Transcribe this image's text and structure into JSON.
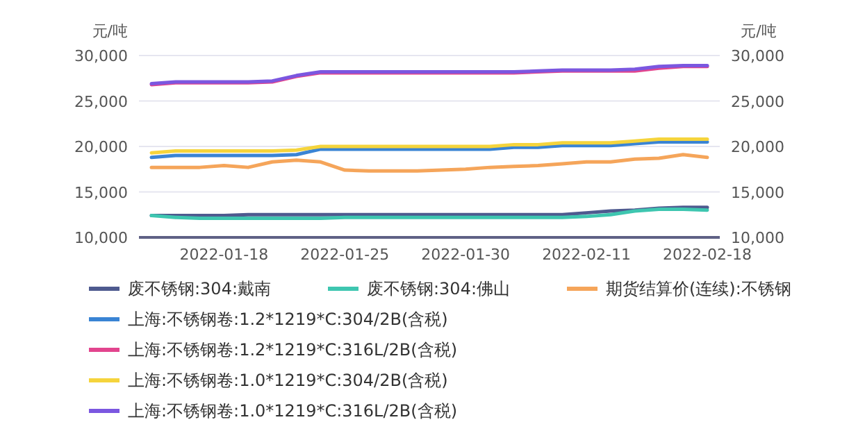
{
  "chart_data": {
    "type": "line",
    "ylabel": "元/吨",
    "y2label": "元/吨",
    "categories": [
      null,
      null,
      null,
      "2022-01-18",
      null,
      null,
      null,
      null,
      "2022-01-25",
      null,
      null,
      null,
      null,
      "2022-01-30",
      null,
      null,
      null,
      null,
      "2022-02-11",
      null,
      null,
      null,
      null,
      "2022-02-18"
    ],
    "ylim": [
      10000,
      30000
    ],
    "yticks": [
      {
        "value": 10000,
        "label": "10,000"
      },
      {
        "value": 15000,
        "label": "15,000"
      },
      {
        "value": 20000,
        "label": "20,000"
      },
      {
        "value": 25000,
        "label": "25,000"
      },
      {
        "value": 30000,
        "label": "30,000"
      }
    ],
    "y2lim": [
      10000,
      30000
    ],
    "y2ticks": [
      {
        "value": 10000,
        "label": "10,000"
      },
      {
        "value": 15000,
        "label": "15,000"
      },
      {
        "value": 20000,
        "label": "20,000"
      },
      {
        "value": 25000,
        "label": "25,000"
      },
      {
        "value": 30000,
        "label": "30,000"
      }
    ],
    "grid": "y",
    "legend": "bottom",
    "series": [
      {
        "name": "废不锈钢:304:戴南",
        "color": "#4e5a8f",
        "values": [
          12400,
          12400,
          12400,
          12400,
          12500,
          12500,
          12500,
          12500,
          12500,
          12500,
          12500,
          12500,
          12500,
          12500,
          12500,
          12500,
          12500,
          12500,
          12700,
          12900,
          13000,
          13200,
          13300,
          13300
        ]
      },
      {
        "name": "废不锈钢:304:佛山",
        "color": "#3ec6b0",
        "values": [
          12400,
          12200,
          12100,
          12100,
          12100,
          12100,
          12100,
          12100,
          12200,
          12200,
          12200,
          12200,
          12200,
          12200,
          12200,
          12200,
          12200,
          12200,
          12300,
          12500,
          12900,
          13100,
          13100,
          13000
        ]
      },
      {
        "name": "期货结算价(连续):不锈钢",
        "color": "#f5a55a",
        "values": [
          17700,
          17700,
          17700,
          17900,
          17700,
          18300,
          18500,
          18300,
          17400,
          17300,
          17300,
          17300,
          17400,
          17500,
          17700,
          17800,
          17900,
          18100,
          18300,
          18300,
          18600,
          18700,
          19100,
          18800
        ]
      },
      {
        "name": "上海:不锈钢卷:1.2*1219*C:304/2B(含税)",
        "color": "#3a84d4",
        "values": [
          18800,
          19000,
          19000,
          19000,
          19000,
          19000,
          19100,
          19700,
          19700,
          19700,
          19700,
          19700,
          19700,
          19700,
          19700,
          19900,
          19900,
          20100,
          20100,
          20100,
          20300,
          20500,
          20500,
          20500
        ]
      },
      {
        "name": "上海:不锈钢卷:1.2*1219*C:316L/2B(含税)",
        "color": "#e2458e",
        "values": [
          26800,
          27000,
          27000,
          27000,
          27000,
          27100,
          27700,
          28100,
          28100,
          28100,
          28100,
          28100,
          28100,
          28100,
          28100,
          28100,
          28200,
          28300,
          28300,
          28300,
          28300,
          28600,
          28800,
          28800
        ]
      },
      {
        "name": "上海:不锈钢卷:1.0*1219*C:304/2B(含税)",
        "color": "#f5d43c",
        "values": [
          19300,
          19500,
          19500,
          19500,
          19500,
          19500,
          19600,
          20000,
          20000,
          20000,
          20000,
          20000,
          20000,
          20000,
          20000,
          20200,
          20200,
          20400,
          20400,
          20400,
          20600,
          20800,
          20800,
          20800
        ]
      },
      {
        "name": "上海:不锈钢卷:1.0*1219*C:316L/2B(含税)",
        "color": "#7b57e0",
        "values": [
          26900,
          27100,
          27100,
          27100,
          27100,
          27200,
          27800,
          28200,
          28200,
          28200,
          28200,
          28200,
          28200,
          28200,
          28200,
          28200,
          28300,
          28400,
          28400,
          28400,
          28500,
          28800,
          28900,
          28900
        ]
      }
    ]
  }
}
